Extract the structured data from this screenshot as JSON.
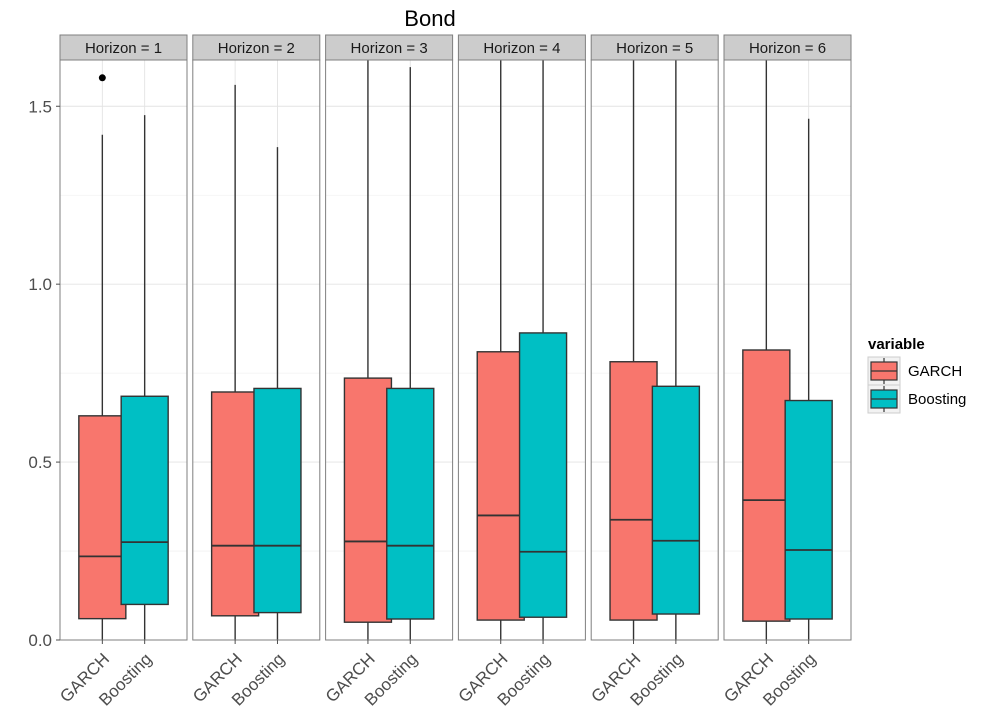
{
  "chart_data": {
    "type": "boxplot",
    "title": "Bond",
    "xlabel": "",
    "ylabel": "",
    "ylim": [
      0,
      1.63
    ],
    "y_ticks": [
      0.0,
      0.5,
      1.0,
      1.5
    ],
    "y_tick_labels": [
      "0.0",
      "0.5",
      "1.0",
      "1.5"
    ],
    "grid": true,
    "facet_strips": [
      "Horizon = 1",
      "Horizon = 2",
      "Horizon = 3",
      "Horizon = 4",
      "Horizon = 5",
      "Horizon = 6"
    ],
    "categories": [
      "GARCH",
      "Boosting"
    ],
    "legend": {
      "title": "variable",
      "position": "right",
      "entries": [
        {
          "label": "GARCH",
          "color": "#F8766D"
        },
        {
          "label": "Boosting",
          "color": "#00BFC4"
        }
      ]
    },
    "series": [
      {
        "name": "GARCH",
        "color": "#F8766D",
        "boxes": [
          {
            "lower_whisker": 0.0,
            "q1": 0.06,
            "median": 0.235,
            "q3": 0.63,
            "upper_whisker": 1.42,
            "outliers": [
              1.58
            ]
          },
          {
            "lower_whisker": 0.0,
            "q1": 0.068,
            "median": 0.265,
            "q3": 0.697,
            "upper_whisker": 1.56,
            "outliers": []
          },
          {
            "lower_whisker": 0.0,
            "q1": 0.05,
            "median": 0.277,
            "q3": 0.736,
            "upper_whisker": 1.63,
            "outliers": []
          },
          {
            "lower_whisker": 0.0,
            "q1": 0.056,
            "median": 0.35,
            "q3": 0.81,
            "upper_whisker": 1.63,
            "outliers": []
          },
          {
            "lower_whisker": 0.0,
            "q1": 0.056,
            "median": 0.338,
            "q3": 0.782,
            "upper_whisker": 1.63,
            "outliers": []
          },
          {
            "lower_whisker": 0.0,
            "q1": 0.053,
            "median": 0.393,
            "q3": 0.815,
            "upper_whisker": 1.63,
            "outliers": []
          }
        ]
      },
      {
        "name": "Boosting",
        "color": "#00BFC4",
        "boxes": [
          {
            "lower_whisker": 0.0,
            "q1": 0.1,
            "median": 0.275,
            "q3": 0.685,
            "upper_whisker": 1.475,
            "outliers": []
          },
          {
            "lower_whisker": 0.0,
            "q1": 0.077,
            "median": 0.265,
            "q3": 0.707,
            "upper_whisker": 1.385,
            "outliers": []
          },
          {
            "lower_whisker": 0.0,
            "q1": 0.059,
            "median": 0.265,
            "q3": 0.707,
            "upper_whisker": 1.61,
            "outliers": []
          },
          {
            "lower_whisker": 0.0,
            "q1": 0.064,
            "median": 0.248,
            "q3": 0.863,
            "upper_whisker": 1.63,
            "outliers": []
          },
          {
            "lower_whisker": 0.0,
            "q1": 0.073,
            "median": 0.279,
            "q3": 0.713,
            "upper_whisker": 1.63,
            "outliers": []
          },
          {
            "lower_whisker": 0.0,
            "q1": 0.059,
            "median": 0.253,
            "q3": 0.673,
            "upper_whisker": 1.465,
            "outliers": []
          }
        ]
      }
    ]
  }
}
